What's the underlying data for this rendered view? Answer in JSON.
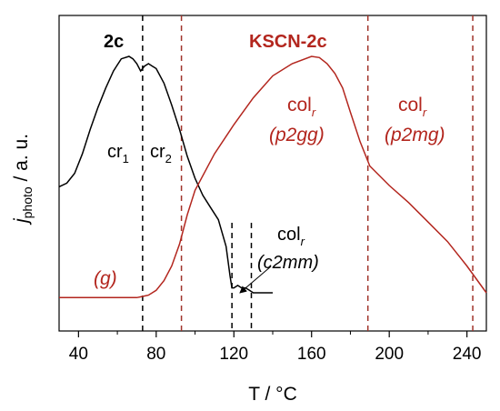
{
  "colors": {
    "black": "#000000",
    "red": "#b3261e",
    "dash_red": "#a0332a"
  },
  "chart_data": {
    "type": "line",
    "xlim": [
      30,
      250
    ],
    "ylim": [
      0,
      1
    ],
    "xticks": [
      40,
      80,
      120,
      160,
      200,
      240
    ],
    "x_minor_ticks": [
      60,
      100,
      140,
      180,
      220
    ],
    "xlabel": "T / °C",
    "ylabel_main": "j",
    "ylabel_sub": "photo",
    "ylabel_rest": " / a. u.",
    "series": [
      {
        "name": "2c",
        "color": "#000000",
        "x": [
          30,
          34,
          38,
          42,
          46,
          50,
          54,
          58,
          62,
          66,
          68,
          70,
          72,
          74,
          76,
          78,
          80,
          84,
          88,
          92,
          96,
          100,
          104,
          108,
          112,
          116,
          118,
          119,
          120,
          122,
          124,
          126,
          128,
          130,
          134,
          140
        ],
        "y": [
          0.465,
          0.48,
          0.52,
          0.6,
          0.7,
          0.79,
          0.87,
          0.94,
          0.99,
          1.0,
          0.99,
          0.97,
          0.94,
          0.96,
          0.97,
          0.96,
          0.95,
          0.89,
          0.8,
          0.7,
          0.59,
          0.5,
          0.43,
          0.38,
          0.33,
          0.22,
          0.1,
          0.05,
          0.05,
          0.06,
          0.05,
          0.05,
          0.04,
          0.03,
          0.03,
          0.03
        ]
      },
      {
        "name": "KSCN-2c",
        "color": "#b3261e",
        "x": [
          30,
          60,
          70,
          73,
          76,
          80,
          84,
          88,
          92,
          96,
          100,
          110,
          120,
          130,
          140,
          150,
          160,
          164,
          168,
          172,
          176,
          180,
          185,
          190,
          200,
          210,
          220,
          230,
          240,
          250
        ],
        "y": [
          0.01,
          0.01,
          0.01,
          0.015,
          0.02,
          0.04,
          0.08,
          0.14,
          0.23,
          0.35,
          0.45,
          0.6,
          0.72,
          0.83,
          0.92,
          0.97,
          1.0,
          0.995,
          0.97,
          0.93,
          0.87,
          0.77,
          0.65,
          0.55,
          0.47,
          0.4,
          0.32,
          0.24,
          0.14,
          0.03
        ]
      }
    ],
    "vlines_black": [
      73,
      119,
      129
    ],
    "vlines_red": [
      93,
      189,
      243
    ],
    "labels": {
      "title_2c": "2c",
      "title_kscn": "KSCN-2c",
      "cr1_main": "cr",
      "cr1_sub": "1",
      "cr2_main": "cr",
      "cr2_sub": "2",
      "colr_black_main": "col",
      "colr_black_sub": "r",
      "c2mm": "(c2mm)",
      "colr_red1_main": "col",
      "colr_red1_sub": "r",
      "p2gg": "(p2gg)",
      "colr_red2_main": "col",
      "colr_red2_sub": "r",
      "p2mg": "(p2mg)",
      "g": "(g)"
    }
  }
}
